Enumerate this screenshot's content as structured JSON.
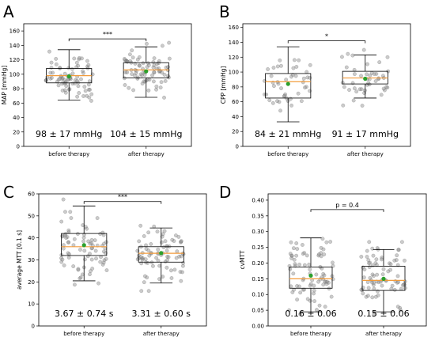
{
  "chart_data": [
    {
      "type": "box",
      "panel_label": "A",
      "ylabel": "MAP [mmHg]",
      "ylim": [
        0,
        170
      ],
      "yticks": [
        0,
        20,
        40,
        60,
        80,
        100,
        120,
        140,
        160
      ],
      "categories": [
        "before therapy",
        "after therapy"
      ],
      "boxes": [
        {
          "whisker_low": 64,
          "q1": 88,
          "median": 98,
          "q3": 108,
          "whisker_high": 134,
          "mean": 97
        },
        {
          "whisker_low": 68,
          "q1": 95,
          "median": 106,
          "q3": 116,
          "whisker_high": 138,
          "mean": 104
        }
      ],
      "summaries": [
        "98 ± 17 mmHg",
        "104 ± 15 mmHg"
      ],
      "significance": "***",
      "bracket_y": 149,
      "n_points": [
        80,
        80
      ],
      "spread": [
        17,
        15
      ],
      "grid": false
    },
    {
      "type": "box",
      "panel_label": "B",
      "ylabel": "CPP [mmHg]",
      "ylim": [
        0,
        165
      ],
      "yticks": [
        0,
        20,
        40,
        60,
        80,
        100,
        120,
        140,
        160
      ],
      "categories": [
        "before therapy",
        "after therapy"
      ],
      "boxes": [
        {
          "whisker_low": 33,
          "q1": 65,
          "median": 87,
          "q3": 98,
          "whisker_high": 134,
          "mean": 84
        },
        {
          "whisker_low": 65,
          "q1": 84,
          "median": 92,
          "q3": 101,
          "whisker_high": 123,
          "mean": 91
        }
      ],
      "summaries": [
        "84 ± 21 mmHg",
        "91 ± 17 mmHg"
      ],
      "significance": "*",
      "bracket_y": 142,
      "n_points": [
        45,
        45
      ],
      "spread": [
        21,
        17
      ],
      "grid": false
    },
    {
      "type": "box",
      "panel_label": "C",
      "ylabel": "average MTT [0.1 s]",
      "ylim": [
        0,
        60
      ],
      "yticks": [
        0,
        10,
        20,
        30,
        40,
        50,
        60
      ],
      "categories": [
        "before therapy",
        "after therapy"
      ],
      "boxes": [
        {
          "whisker_low": 20.5,
          "q1": 32,
          "median": 36,
          "q3": 42,
          "whisker_high": 54.5,
          "mean": 36.7
        },
        {
          "whisker_low": 19.5,
          "q1": 29,
          "median": 33,
          "q3": 36,
          "whisker_high": 44.5,
          "mean": 33.1
        }
      ],
      "summaries": [
        "3.67 ± 0.74 s",
        "3.31 ± 0.60 s"
      ],
      "significance": "***",
      "bracket_y": 56.5,
      "n_points": [
        80,
        80
      ],
      "spread": [
        7.4,
        6.0
      ],
      "grid": false
    },
    {
      "type": "box",
      "panel_label": "D",
      "ylabel": "cvMTT",
      "ylim": [
        0,
        0.42
      ],
      "yticks": [
        0.0,
        0.05,
        0.1,
        0.15,
        0.2,
        0.25,
        0.3,
        0.35,
        0.4
      ],
      "categories": [
        "before therapy",
        "after therapy"
      ],
      "boxes": [
        {
          "whisker_low": 0.045,
          "q1": 0.12,
          "median": 0.15,
          "q3": 0.187,
          "whisker_high": 0.28,
          "mean": 0.16
        },
        {
          "whisker_low": 0.045,
          "q1": 0.113,
          "median": 0.145,
          "q3": 0.19,
          "whisker_high": 0.243,
          "mean": 0.15
        }
      ],
      "summaries": [
        "0.16 ± 0.06",
        "0.15 ± 0.06"
      ],
      "significance": "p = 0.4",
      "bracket_y": 0.37,
      "n_points": [
        80,
        80
      ],
      "spread": [
        0.06,
        0.06
      ],
      "grid": false
    }
  ],
  "colors": {
    "median": "#f39c3c",
    "mean": "#2ca02c",
    "points": "#8c8c8c",
    "axes": "#000000"
  }
}
